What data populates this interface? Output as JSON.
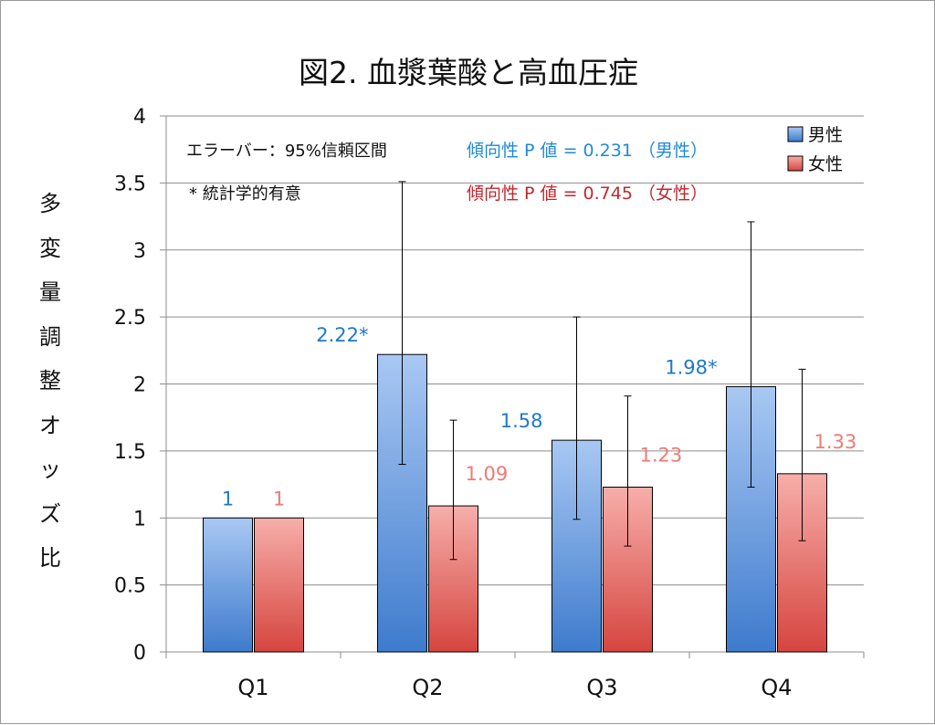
{
  "colors": {
    "male": "#4f86d1",
    "female": "#d9534f",
    "male_label": "#1f78c8",
    "female_label": "#f07a73",
    "trend_male": "#1f8ad6",
    "trend_female": "#c0282d"
  },
  "chart_data": {
    "type": "bar",
    "title": "図2. 血漿葉酸と高血圧症",
    "ylabel": "多変量調整オッズ比",
    "xlabel": "",
    "categories": [
      "Q1",
      "Q2",
      "Q3",
      "Q4"
    ],
    "ylim": [
      0,
      4
    ],
    "yticks": [
      "0",
      "0.5",
      "1",
      "1.5",
      "2",
      "2.5",
      "3",
      "3.5",
      "4"
    ],
    "grid": true,
    "legend_position": "top-right",
    "series": [
      {
        "name": "男性",
        "values": [
          1,
          2.22,
          1.58,
          1.98
        ],
        "labels": [
          "1",
          "2.22*",
          "1.58",
          "1.98*"
        ],
        "error_low": [
          null,
          1.4,
          0.99,
          1.23
        ],
        "error_high": [
          null,
          3.51,
          2.5,
          3.21
        ]
      },
      {
        "name": "女性",
        "values": [
          1,
          1.09,
          1.23,
          1.33
        ],
        "labels": [
          "1",
          "1.09",
          "1.23",
          "1.33"
        ],
        "error_low": [
          null,
          0.69,
          0.79,
          0.83
        ],
        "error_high": [
          null,
          1.73,
          1.91,
          2.11
        ]
      }
    ],
    "annotations": {
      "error_note": "エラーバー：95%信頼区間",
      "significance_note": "* 統計学的有意",
      "trend_male": "傾向性 P 値 = 0.231 （男性）",
      "trend_female": "傾向性 P 値 = 0.745 （女性）"
    }
  }
}
